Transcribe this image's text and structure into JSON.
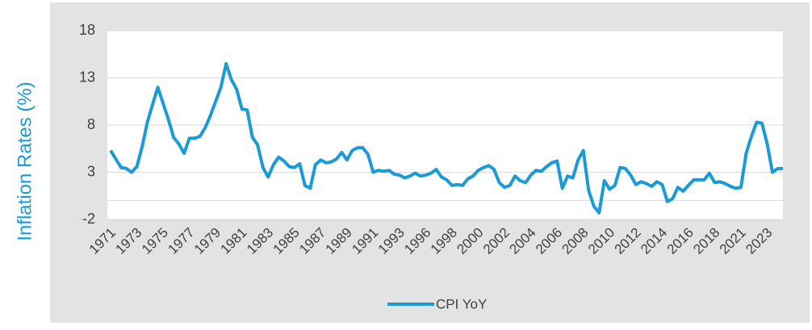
{
  "chart_data": {
    "type": "line",
    "y_axis_label": "Inflation Rates (%)",
    "categories": [
      "1971",
      null,
      null,
      null,
      null,
      "1973",
      null,
      null,
      null,
      null,
      "1975",
      null,
      null,
      null,
      null,
      "1977",
      null,
      null,
      null,
      null,
      "1979",
      null,
      null,
      null,
      null,
      "1981",
      null,
      null,
      null,
      null,
      "1983",
      null,
      null,
      null,
      null,
      "1985",
      null,
      null,
      null,
      null,
      "1987",
      null,
      null,
      null,
      null,
      "1989",
      null,
      null,
      null,
      null,
      "1991",
      null,
      null,
      null,
      null,
      "1993",
      null,
      null,
      null,
      null,
      "1996",
      null,
      null,
      null,
      null,
      "1998",
      null,
      null,
      null,
      null,
      "2000",
      null,
      null,
      null,
      null,
      "2002",
      null,
      null,
      null,
      null,
      "2004",
      null,
      null,
      null,
      null,
      "2006",
      null,
      null,
      null,
      null,
      "2008",
      null,
      null,
      null,
      null,
      "2010",
      null,
      null,
      null,
      null,
      "2012",
      null,
      null,
      null,
      null,
      "2014",
      null,
      null,
      null,
      null,
      "2016",
      null,
      null,
      null,
      null,
      "2018",
      null,
      null,
      null,
      null,
      "2021",
      null,
      null,
      null,
      null,
      "2023",
      null,
      null,
      null
    ],
    "series": [
      {
        "name": "CPI YoY",
        "color": "#1a9bd7",
        "values": [
          5.3,
          4.4,
          3.5,
          3.4,
          3.0,
          3.6,
          5.7,
          8.3,
          10.2,
          12.0,
          10.3,
          8.6,
          6.7,
          6.0,
          5.0,
          6.6,
          6.6,
          6.8,
          7.7,
          9.0,
          10.5,
          12.0,
          14.5,
          12.8,
          11.8,
          9.7,
          9.6,
          6.7,
          5.9,
          3.5,
          2.5,
          3.8,
          4.6,
          4.2,
          3.6,
          3.5,
          3.9,
          1.6,
          1.3,
          3.8,
          4.3,
          4.0,
          4.1,
          4.4,
          5.1,
          4.3,
          5.3,
          5.6,
          5.6,
          4.9,
          3.0,
          3.2,
          3.1,
          3.2,
          2.8,
          2.7,
          2.4,
          2.6,
          2.9,
          2.6,
          2.7,
          2.9,
          3.3,
          2.5,
          2.2,
          1.6,
          1.7,
          1.6,
          2.3,
          2.6,
          3.2,
          3.5,
          3.7,
          3.3,
          1.9,
          1.4,
          1.6,
          2.6,
          2.1,
          1.9,
          2.7,
          3.2,
          3.1,
          3.6,
          4.0,
          4.2,
          1.3,
          2.6,
          2.4,
          4.3,
          5.3,
          1.1,
          -0.6,
          -1.3,
          2.1,
          1.2,
          1.6,
          3.5,
          3.4,
          2.7,
          1.7,
          2.0,
          1.8,
          1.5,
          2.0,
          1.7,
          -0.1,
          0.2,
          1.4,
          1.0,
          1.6,
          2.2,
          2.2,
          2.2,
          2.9,
          1.9,
          2.0,
          1.8,
          1.5,
          1.3,
          1.4,
          5.0,
          6.8,
          8.3,
          8.2,
          6.0,
          3.0,
          3.4,
          3.4
        ]
      }
    ],
    "ylim": [
      -2,
      18
    ],
    "yticks": [
      -2,
      3,
      8,
      13,
      18
    ],
    "grid": true,
    "legend": "bottom"
  }
}
